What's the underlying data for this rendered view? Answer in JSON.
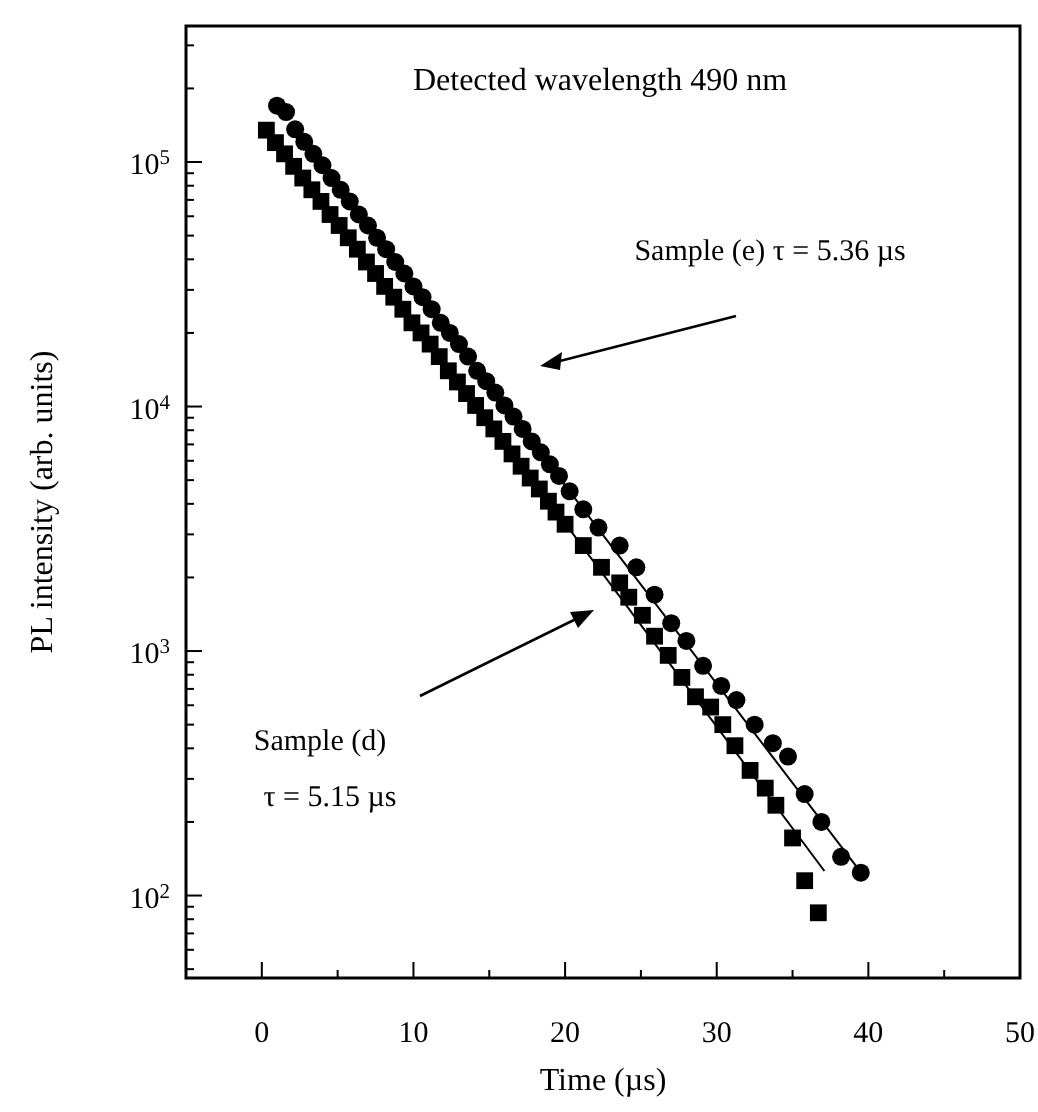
{
  "chart_data": {
    "type": "scatter",
    "xlabel": "Time (µs)",
    "ylabel": "PL intensity (arb. units)",
    "log": "y",
    "xlim": [
      -5,
      50
    ],
    "xticks": [
      0,
      {
        "value": 5,
        "label": null
      },
      10,
      {
        "value": 15,
        "label": null
      },
      20,
      {
        "value": 25,
        "label": null
      },
      30,
      {
        "value": 35,
        "label": null
      },
      40,
      {
        "value": 45,
        "label": null
      },
      50
    ],
    "ylim": [
      46,
      360000
    ],
    "yticks": [
      {
        "value": 50,
        "label": null
      },
      {
        "value": 60,
        "label": null
      },
      {
        "value": 70,
        "label": null
      },
      {
        "value": 80,
        "label": null
      },
      {
        "value": 90,
        "label": null
      },
      {
        "value": 100,
        "label": "10$^{2}$"
      },
      {
        "value": 200,
        "label": null
      },
      {
        "value": 300,
        "label": null
      },
      {
        "value": 400,
        "label": null
      },
      {
        "value": 500,
        "label": null
      },
      {
        "value": 600,
        "label": null
      },
      {
        "value": 700,
        "label": null
      },
      {
        "value": 800,
        "label": null
      },
      {
        "value": 900,
        "label": null
      },
      {
        "value": 1000,
        "label": "10$^{3}$"
      },
      {
        "value": 2000,
        "label": null
      },
      {
        "value": 3000,
        "label": null
      },
      {
        "value": 4000,
        "label": null
      },
      {
        "value": 5000,
        "label": null
      },
      {
        "value": 6000,
        "label": null
      },
      {
        "value": 7000,
        "label": null
      },
      {
        "value": 8000,
        "label": null
      },
      {
        "value": 9000,
        "label": null
      },
      {
        "value": 10000,
        "label": "10$^{4}$"
      },
      {
        "value": 20000,
        "label": null
      },
      {
        "value": 30000,
        "label": null
      },
      {
        "value": 40000,
        "label": null
      },
      {
        "value": 50000,
        "label": null
      },
      {
        "value": 60000,
        "label": null
      },
      {
        "value": 70000,
        "label": null
      },
      {
        "value": 80000,
        "label": null
      },
      {
        "value": 90000,
        "label": null
      },
      {
        "value": 100000,
        "label": "10$^{5}$"
      },
      {
        "value": 200000,
        "label": null
      },
      {
        "value": 300000,
        "label": null
      }
    ],
    "grid": false,
    "series": [
      {
        "marker": "circle",
        "color": "#000000",
        "x": [
          1.0,
          1.6,
          2.2,
          2.8,
          3.4,
          4.0,
          4.6,
          5.2,
          5.8,
          6.4,
          7.0,
          7.6,
          8.2,
          8.8,
          9.4,
          10.0,
          10.6,
          11.2,
          11.8,
          12.4,
          13.0,
          13.6,
          14.2,
          14.8,
          15.4,
          16.0,
          16.6,
          17.2,
          17.8,
          18.4,
          19.0,
          19.6,
          20.3,
          21.2,
          22.2,
          23.6,
          24.7,
          25.9,
          27.0,
          28.0,
          29.1,
          30.3,
          31.3,
          32.5,
          33.7,
          34.7,
          35.8,
          36.9,
          38.2,
          39.5
        ],
        "values": [
          170000,
          160000,
          136000,
          121000,
          108000,
          97000,
          86000,
          77000,
          69000,
          61000,
          55000,
          49000,
          44000,
          39000,
          35000,
          31000,
          28000,
          25000,
          22000,
          20000,
          18000,
          16000,
          14000,
          12700,
          11400,
          10100,
          9100,
          8100,
          7200,
          6500,
          5800,
          5200,
          4500,
          3800,
          3200,
          2700,
          2200,
          1700,
          1300,
          1100,
          870,
          720,
          630,
          500,
          420,
          370,
          260,
          200,
          144,
          124
        ]
      },
      {
        "marker": "square",
        "color": "#000000",
        "x": [
          0.3,
          0.9,
          1.5,
          2.1,
          2.7,
          3.3,
          3.9,
          4.5,
          5.1,
          5.7,
          6.3,
          6.9,
          7.5,
          8.1,
          8.7,
          9.3,
          9.9,
          10.5,
          11.1,
          11.7,
          12.3,
          12.9,
          13.5,
          14.1,
          14.7,
          15.3,
          15.9,
          16.5,
          17.1,
          17.7,
          18.3,
          18.9,
          19.4,
          20.0,
          21.2,
          22.4,
          23.6,
          24.2,
          25.1,
          25.9,
          26.8,
          27.7,
          28.6,
          29.6,
          30.4,
          31.2,
          32.2,
          33.2,
          33.9,
          35.0,
          35.8,
          36.7
        ],
        "values": [
          135000,
          120000,
          108000,
          96000,
          86000,
          77000,
          69000,
          61000,
          55000,
          49000,
          44000,
          39000,
          35000,
          31000,
          28000,
          25000,
          22000,
          20000,
          18000,
          16000,
          14000,
          12600,
          11300,
          10100,
          9000,
          8100,
          7200,
          6400,
          5700,
          5100,
          4600,
          4100,
          3700,
          3300,
          2700,
          2200,
          1900,
          1660,
          1400,
          1150,
          960,
          780,
          650,
          590,
          500,
          410,
          325,
          275,
          234,
          172,
          115,
          85
        ]
      },
      {
        "type": "line",
        "marker": "none",
        "line_style": "solid",
        "color": "#000000",
        "x": [
          15,
          39.7
        ],
        "values": [
          12100,
          120
        ]
      },
      {
        "type": "line",
        "marker": "none",
        "line_style": "solid",
        "color": "#000000",
        "x": [
          14,
          37.1
        ],
        "values": [
          10500,
          126
        ]
      }
    ],
    "annotations": [
      "Detected wavelength  490 nm",
      "Sample (e)  τ = 5.36 µs",
      "Sample (d)",
      "τ = 5.15 µs"
    ]
  }
}
